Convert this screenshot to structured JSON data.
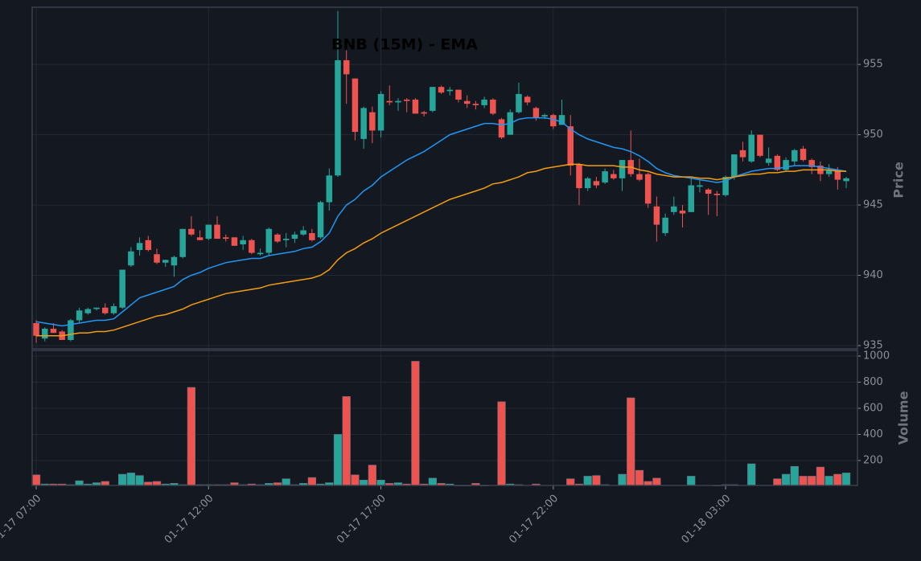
{
  "chart_data": [
    {
      "type": "candlestick",
      "title": "BNB (15M) - EMA",
      "ylabel": "Price",
      "up_color": "#26a69a",
      "down_color": "#ef5350",
      "grid": true,
      "xlim": [
        -0.47,
        95.3
      ],
      "ylim": [
        934.77,
        959.07
      ],
      "yticks": [
        935,
        940,
        945,
        950,
        955
      ],
      "open": [
        936.6,
        935.5,
        936.2,
        936.0,
        935.4,
        936.8,
        937.3,
        937.6,
        937.7,
        937.3,
        937.7,
        940.7,
        941.8,
        942.5,
        941.5,
        940.9,
        940.7,
        941.3,
        943.3,
        942.7,
        942.6,
        943.6,
        942.7,
        942.7,
        942.2,
        942.5,
        941.5,
        941.6,
        942.9,
        942.5,
        942.6,
        942.9,
        943.0,
        942.7,
        945.2,
        947.1,
        955.3,
        954.0,
        949.7,
        951.6,
        950.3,
        952.4,
        952.3,
        952.5,
        952.5,
        951.6,
        951.7,
        953.4,
        953.1,
        953.2,
        952.4,
        952.2,
        952.1,
        952.5,
        951.1,
        950.0,
        951.6,
        952.7,
        951.9,
        951.3,
        951.4,
        950.7,
        950.6,
        947.9,
        946.2,
        946.7,
        946.6,
        947.2,
        946.9,
        948.2,
        947.2,
        947.2,
        944.9,
        943.0,
        944.5,
        944.6,
        944.5,
        946.3,
        946.1,
        945.8,
        945.7,
        947.0,
        948.9,
        948.1,
        950.0,
        948.0,
        948.5,
        947.5,
        948.1,
        949.0,
        948.2,
        947.8,
        947.2,
        947.5,
        946.7
      ],
      "high": [
        936.8,
        936.3,
        936.6,
        936.1,
        936.9,
        937.7,
        937.7,
        937.7,
        938.0,
        938.0,
        940.4,
        942.0,
        942.7,
        942.8,
        941.9,
        941.1,
        941.4,
        943.3,
        944.2,
        943.2,
        943.6,
        944.2,
        942.9,
        942.7,
        942.8,
        942.6,
        941.9,
        943.4,
        943.0,
        943.0,
        943.1,
        943.5,
        943.3,
        945.3,
        947.6,
        958.8,
        956.0,
        954.0,
        952.0,
        952.0,
        953.1,
        953.5,
        952.6,
        952.6,
        952.6,
        951.7,
        953.4,
        953.5,
        953.4,
        953.2,
        952.8,
        952.4,
        952.7,
        952.6,
        951.2,
        951.8,
        953.7,
        952.8,
        952.0,
        951.5,
        951.5,
        952.5,
        951.4,
        948.0,
        947.0,
        947.0,
        947.6,
        947.5,
        948.2,
        950.3,
        948.3,
        947.3,
        945.6,
        944.4,
        945.6,
        945.0,
        946.9,
        946.8,
        946.2,
        946.0,
        947.1,
        948.6,
        949.5,
        950.3,
        950.0,
        949.1,
        948.6,
        948.4,
        949.0,
        949.2,
        948.3,
        948.1,
        947.9,
        947.7,
        947.0
      ],
      "low": [
        935.2,
        935.3,
        935.9,
        935.4,
        935.3,
        936.6,
        937.2,
        937.5,
        937.2,
        937.2,
        937.6,
        940.6,
        941.4,
        941.7,
        940.8,
        940.6,
        939.9,
        941.2,
        942.8,
        942.5,
        942.5,
        942.6,
        942.4,
        942.1,
        941.8,
        941.5,
        941.4,
        941.4,
        942.3,
        942.0,
        942.3,
        942.8,
        942.4,
        942.6,
        944.6,
        947.0,
        952.2,
        949.6,
        949.0,
        949.4,
        949.8,
        952.1,
        951.7,
        951.6,
        951.5,
        951.3,
        951.6,
        952.9,
        952.8,
        952.3,
        951.9,
        951.8,
        951.9,
        951.4,
        949.7,
        950.0,
        951.5,
        952.1,
        951.0,
        951.1,
        950.4,
        950.7,
        947.1,
        945.0,
        946.0,
        946.2,
        946.5,
        946.8,
        946.0,
        947.0,
        946.7,
        944.8,
        942.4,
        942.8,
        944.3,
        943.4,
        944.5,
        945.9,
        944.3,
        944.2,
        945.6,
        946.8,
        948.1,
        948.0,
        948.4,
        947.8,
        947.4,
        947.4,
        947.8,
        948.1,
        947.2,
        946.7,
        947.0,
        946.1,
        946.2
      ],
      "close": [
        935.7,
        936.2,
        935.9,
        935.4,
        936.8,
        937.5,
        937.6,
        937.7,
        937.3,
        937.8,
        940.4,
        941.7,
        942.3,
        941.8,
        940.9,
        941.1,
        941.3,
        943.3,
        942.9,
        942.5,
        943.6,
        942.6,
        942.6,
        942.1,
        942.5,
        941.6,
        941.6,
        943.3,
        942.4,
        942.6,
        942.9,
        943.2,
        942.5,
        945.2,
        947.1,
        955.3,
        954.3,
        950.2,
        951.9,
        950.3,
        952.9,
        952.3,
        952.4,
        952.4,
        951.5,
        951.5,
        953.4,
        953.0,
        953.2,
        952.5,
        952.2,
        952.1,
        952.5,
        951.5,
        949.8,
        951.6,
        952.9,
        952.3,
        951.2,
        951.4,
        950.6,
        951.4,
        947.8,
        946.2,
        946.9,
        946.4,
        947.4,
        946.9,
        948.2,
        947.2,
        946.8,
        945.1,
        943.6,
        944.1,
        944.9,
        944.4,
        946.4,
        946.4,
        945.8,
        945.7,
        947.0,
        948.6,
        948.4,
        950.0,
        948.5,
        948.3,
        947.5,
        948.2,
        948.9,
        948.2,
        947.7,
        947.2,
        947.5,
        946.8,
        946.9
      ],
      "lines": [
        {
          "color": "#2196f3",
          "values": [
            936.7,
            936.6,
            936.5,
            936.4,
            936.5,
            936.6,
            936.7,
            936.8,
            936.8,
            936.9,
            937.4,
            937.9,
            938.4,
            938.6,
            938.8,
            939.0,
            939.2,
            939.7,
            940.0,
            940.2,
            940.5,
            940.7,
            940.9,
            941.0,
            941.1,
            941.2,
            941.2,
            941.4,
            941.5,
            941.6,
            941.7,
            941.9,
            942.0,
            942.4,
            943.0,
            944.2,
            945.0,
            945.4,
            946.0,
            946.4,
            947.0,
            947.4,
            947.8,
            948.2,
            948.5,
            948.8,
            949.2,
            949.6,
            950.0,
            950.2,
            950.4,
            950.6,
            950.8,
            950.8,
            950.7,
            950.8,
            951.1,
            951.2,
            951.2,
            951.2,
            951.1,
            950.9,
            950.4,
            950.0,
            949.7,
            949.5,
            949.3,
            949.1,
            949.0,
            948.8,
            948.5,
            948.1,
            947.6,
            947.3,
            947.1,
            947.0,
            946.9,
            946.8,
            946.7,
            946.6,
            946.7,
            947.0,
            947.2,
            947.4,
            947.5,
            947.6,
            947.6,
            947.7,
            947.8,
            947.8,
            947.8,
            947.7,
            947.6,
            947.5,
            947.4
          ]
        },
        {
          "color": "#f39c12",
          "values": [
            935.7,
            935.7,
            935.7,
            935.7,
            935.8,
            935.9,
            935.9,
            936.0,
            936.0,
            936.1,
            936.3,
            936.5,
            936.7,
            936.9,
            937.1,
            937.2,
            937.4,
            937.6,
            937.9,
            938.1,
            938.3,
            938.5,
            938.7,
            938.8,
            938.9,
            939.0,
            939.1,
            939.3,
            939.4,
            939.5,
            939.6,
            939.7,
            939.8,
            940.0,
            940.4,
            941.1,
            941.6,
            941.9,
            942.3,
            942.6,
            943.0,
            943.3,
            943.6,
            943.9,
            944.2,
            944.5,
            944.8,
            945.1,
            945.4,
            945.6,
            945.8,
            946.0,
            946.2,
            946.5,
            946.6,
            946.8,
            947.0,
            947.3,
            947.4,
            947.6,
            947.7,
            947.8,
            947.9,
            947.9,
            947.8,
            947.8,
            947.8,
            947.8,
            947.7,
            947.7,
            947.5,
            947.4,
            947.2,
            947.1,
            947.0,
            947.0,
            947.0,
            946.9,
            946.9,
            946.8,
            946.9,
            947.0,
            947.1,
            947.2,
            947.2,
            947.3,
            947.3,
            947.4,
            947.4,
            947.5,
            947.5,
            947.5,
            947.5,
            947.4,
            947.4
          ]
        }
      ]
    },
    {
      "type": "volume",
      "ylabel": "Volume",
      "grid": true,
      "xlim": [
        -0.47,
        95.3
      ],
      "ylim": [
        9,
        1043
      ],
      "yticks": [
        200,
        400,
        600,
        800,
        1000
      ],
      "xticks": [
        {
          "value": 0,
          "label": "01-17 07:00"
        },
        {
          "value": 20,
          "label": "01-17 12:00"
        },
        {
          "value": 40,
          "label": "01-17 17:00"
        },
        {
          "value": 60,
          "label": "01-17 22:00"
        },
        {
          "value": 80,
          "label": "01-18 03:00"
        }
      ],
      "values": [
        90,
        20,
        20,
        20,
        15,
        45,
        20,
        30,
        40,
        10,
        95,
        105,
        85,
        35,
        40,
        20,
        25,
        15,
        760,
        15,
        15,
        15,
        15,
        30,
        15,
        20,
        15,
        25,
        30,
        60,
        15,
        25,
        70,
        20,
        30,
        400,
        690,
        90,
        50,
        165,
        50,
        25,
        30,
        20,
        960,
        20,
        65,
        25,
        20,
        5,
        5,
        25,
        5,
        10,
        650,
        20,
        15,
        10,
        20,
        10,
        10,
        10,
        60,
        20,
        80,
        85,
        15,
        10,
        95,
        680,
        125,
        40,
        65,
        10,
        10,
        10,
        80,
        10,
        10,
        5,
        15,
        15,
        10,
        175,
        10,
        10,
        60,
        95,
        155,
        80,
        80,
        150,
        80,
        95,
        105
      ]
    }
  ]
}
